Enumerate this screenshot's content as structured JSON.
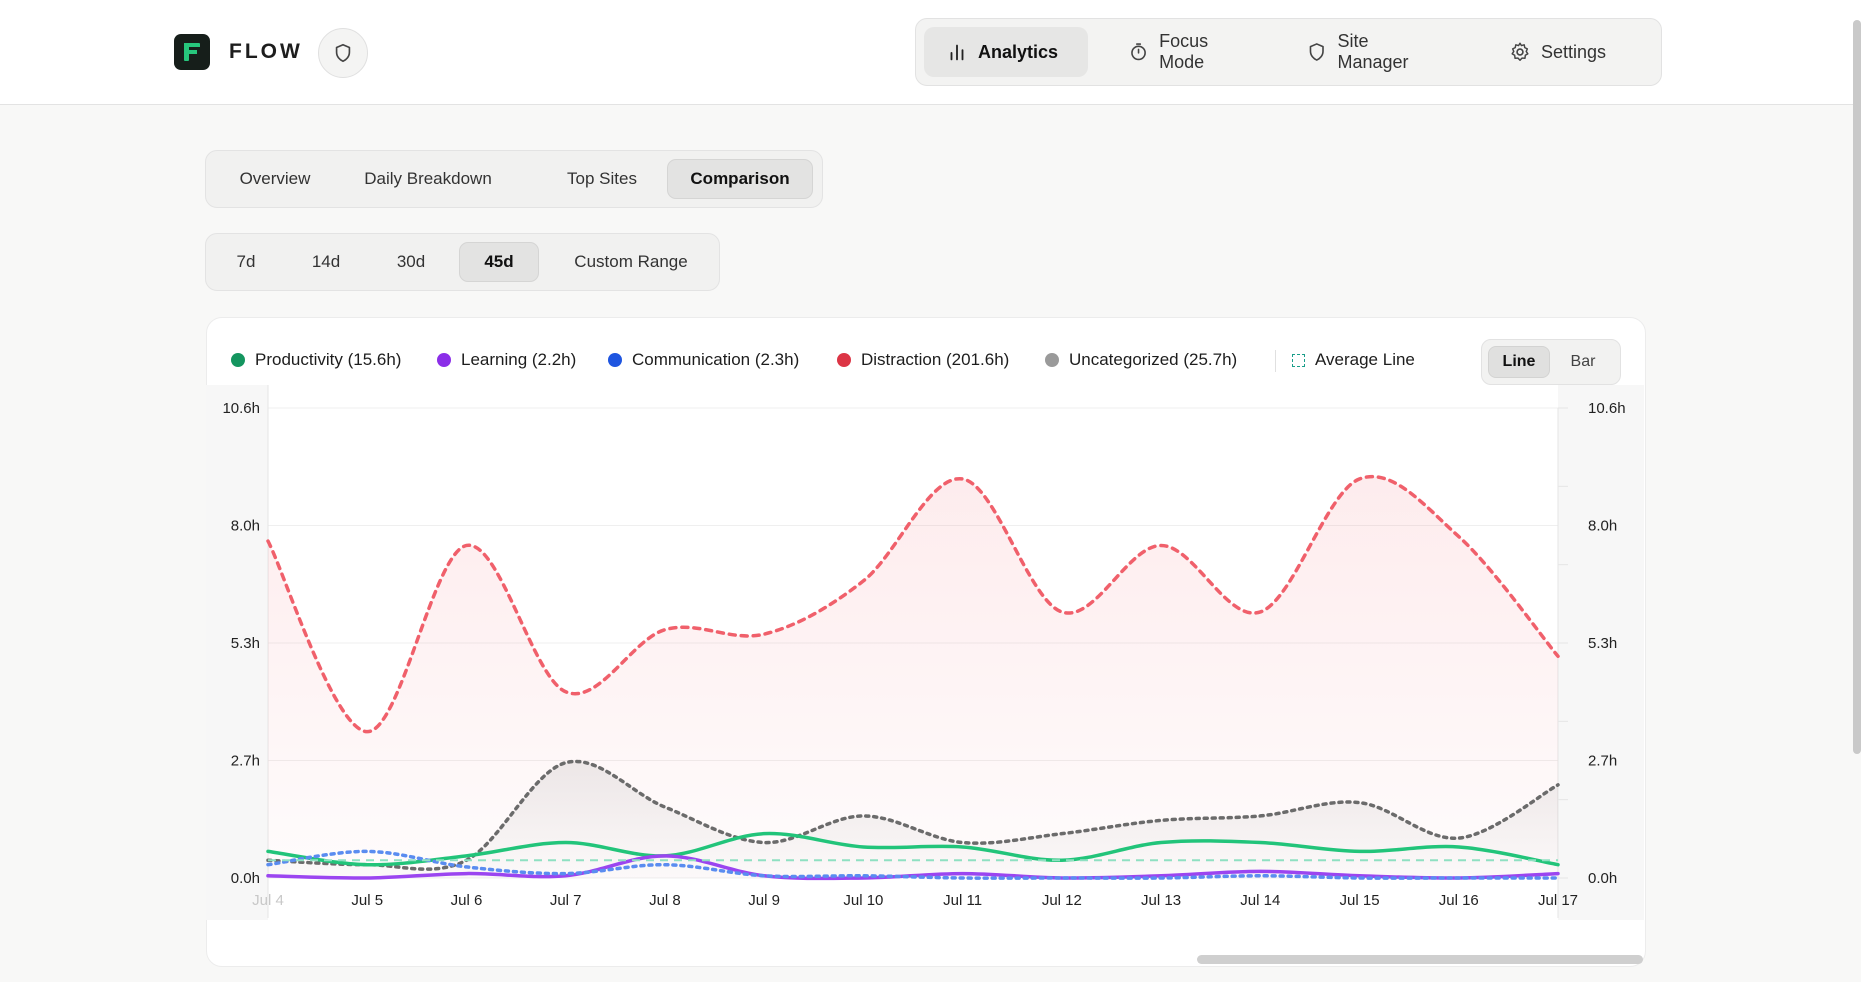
{
  "header": {
    "brand": "FLOW",
    "nav": [
      {
        "label": "Analytics",
        "icon": "bar-chart-icon",
        "active": true
      },
      {
        "label": "Focus Mode",
        "icon": "timer-icon",
        "active": false
      },
      {
        "label": "Site Manager",
        "icon": "shield-icon",
        "active": false
      },
      {
        "label": "Settings",
        "icon": "gear-icon",
        "active": false
      }
    ]
  },
  "tabs": [
    {
      "label": "Overview",
      "active": false
    },
    {
      "label": "Daily Breakdown",
      "active": false
    },
    {
      "label": "Top Sites",
      "active": false
    },
    {
      "label": "Comparison",
      "active": true
    }
  ],
  "ranges": [
    {
      "label": "7d",
      "active": false
    },
    {
      "label": "14d",
      "active": false
    },
    {
      "label": "30d",
      "active": false
    },
    {
      "label": "45d",
      "active": true
    },
    {
      "label": "Custom Range",
      "active": false
    }
  ],
  "legend": {
    "items": [
      {
        "label": "Productivity (15.6h)",
        "color": "#14955f"
      },
      {
        "label": "Learning (2.2h)",
        "color": "#8b2ee8"
      },
      {
        "label": "Communication (2.3h)",
        "color": "#1e55e0"
      },
      {
        "label": "Distraction (201.6h)",
        "color": "#dc3545"
      },
      {
        "label": "Uncategorized (25.7h)",
        "color": "#9a9a9a"
      }
    ],
    "average_label": "Average Line"
  },
  "view_toggle": {
    "line_label": "Line",
    "bar_label": "Bar",
    "active": "Line"
  },
  "chart_data": {
    "type": "line",
    "categories": [
      "Jul 4",
      "Jul 5",
      "Jul 6",
      "Jul 7",
      "Jul 8",
      "Jul 9",
      "Jul 10",
      "Jul 11",
      "Jul 12",
      "Jul 13",
      "Jul 14",
      "Jul 15",
      "Jul 16",
      "Jul 17"
    ],
    "y_ticks": [
      "0.0h",
      "2.7h",
      "5.3h",
      "8.0h",
      "10.6h"
    ],
    "ylim": [
      0,
      10.6
    ],
    "grid": true,
    "series": [
      {
        "name": "Distraction",
        "color": "#f0606b",
        "style": "dashed",
        "fill": true,
        "values": [
          7.6,
          3.3,
          7.5,
          4.2,
          5.6,
          5.5,
          6.7,
          9.0,
          6.0,
          7.5,
          6.0,
          9.0,
          7.7,
          5.0
        ]
      },
      {
        "name": "Uncategorized",
        "color": "#6b6b6b",
        "style": "dotted",
        "fill": true,
        "values": [
          0.4,
          0.3,
          0.4,
          2.6,
          1.6,
          0.8,
          1.4,
          0.8,
          1.0,
          1.3,
          1.4,
          1.7,
          0.9,
          2.1
        ]
      },
      {
        "name": "Productivity",
        "color": "#22c47a",
        "style": "solid",
        "fill": false,
        "values": [
          0.6,
          0.3,
          0.5,
          0.8,
          0.5,
          1.0,
          0.7,
          0.7,
          0.4,
          0.8,
          0.8,
          0.6,
          0.7,
          0.3
        ]
      },
      {
        "name": "Learning",
        "color": "#9b45f0",
        "style": "solid",
        "fill": false,
        "values": [
          0.05,
          0.0,
          0.1,
          0.05,
          0.5,
          0.05,
          0.0,
          0.1,
          0.0,
          0.05,
          0.15,
          0.05,
          0.0,
          0.1
        ]
      },
      {
        "name": "Communication",
        "color": "#5a8cf0",
        "style": "dotted",
        "fill": false,
        "values": [
          0.3,
          0.6,
          0.25,
          0.1,
          0.3,
          0.05,
          0.05,
          0.0,
          0.0,
          0.0,
          0.05,
          0.0,
          0.0,
          0.0
        ]
      }
    ],
    "average": {
      "value": 0.4,
      "color": "#8fe0c2"
    }
  }
}
